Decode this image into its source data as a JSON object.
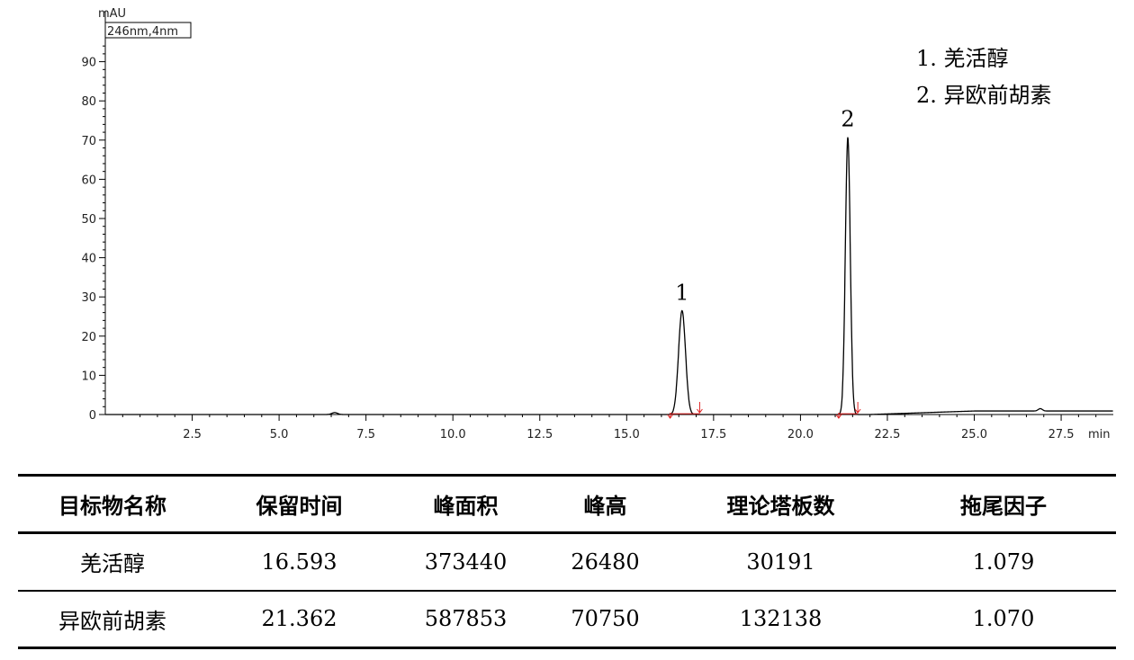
{
  "chart_data": {
    "type": "line",
    "ylabel": "mAU",
    "xlabel": "min",
    "detector_label": "246nm,4nm",
    "xlim": [
      0,
      29
    ],
    "ylim": [
      0,
      100
    ],
    "x_ticks": [
      2.5,
      5.0,
      7.5,
      10.0,
      12.5,
      15.0,
      17.5,
      20.0,
      22.5,
      25.0,
      27.5
    ],
    "y_ticks": [
      0,
      10,
      20,
      30,
      40,
      50,
      60,
      70,
      80,
      90
    ],
    "series": [
      {
        "baseline": 0,
        "peaks": [
          {
            "label": "1",
            "rt": 16.593,
            "height": 26.48,
            "sigma": 0.1
          },
          {
            "label": "2",
            "rt": 21.362,
            "height": 70.75,
            "sigma": 0.07
          }
        ]
      }
    ],
    "legend": [
      "1.   羌活醇",
      "2.   异欧前胡素"
    ],
    "legend_position": "top-right",
    "integration_marks": [
      16.25,
      17.1,
      21.1,
      21.65
    ]
  },
  "table": {
    "headers": [
      "目标物名称",
      "保留时间",
      "峰面积",
      "峰高",
      "理论塔板数",
      "拖尾因子"
    ],
    "rows": [
      [
        "羌活醇",
        "16.593",
        "373440",
        "26480",
        "30191",
        "1.079"
      ],
      [
        "异欧前胡素",
        "21.362",
        "587853",
        "70750",
        "132138",
        "1.070"
      ]
    ]
  }
}
